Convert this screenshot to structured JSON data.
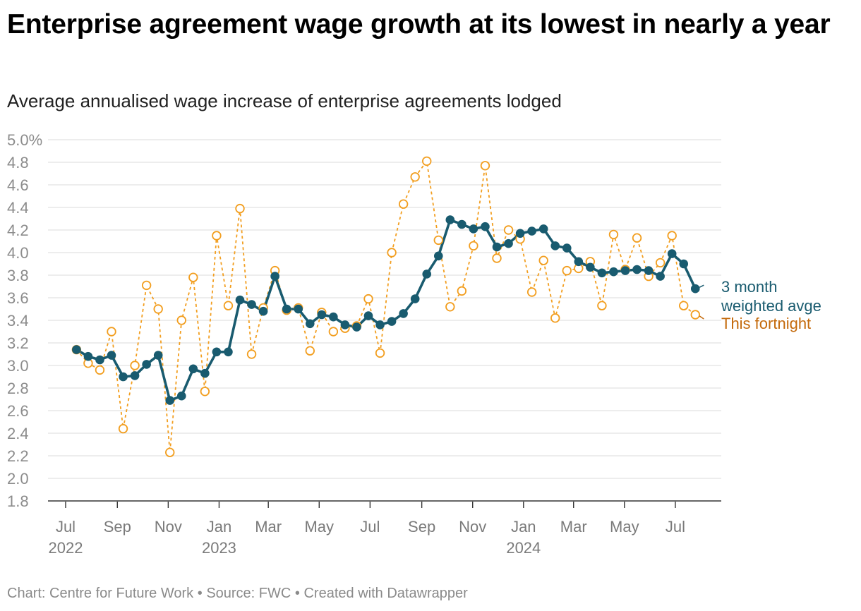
{
  "title": "Enterprise agreement wage growth at its lowest in nearly a year",
  "subtitle": "Average annualised wage increase of enterprise agreements lodged",
  "footer": {
    "chart_by": "Chart: Centre for Future Work",
    "source": "Source: FWC",
    "created": "Created with Datawrapper",
    "separator": "•"
  },
  "colors": {
    "weighted": "#195b6f",
    "fortnight": "#f29e1f",
    "fortnight_label": "#c46a0c",
    "grid": "#e2e2e2",
    "axis": "#333333"
  },
  "chart_data": {
    "type": "line",
    "title": "Enterprise agreement wage growth at its lowest in nearly a year",
    "subtitle": "Average annualised wage increase of enterprise agreements lodged",
    "y_axis": {
      "min": 1.8,
      "max": 5.0,
      "ticks": [
        1.8,
        2.0,
        2.2,
        2.4,
        2.6,
        2.8,
        3.0,
        3.2,
        3.4,
        3.6,
        3.8,
        4.0,
        4.2,
        4.4,
        4.6,
        4.8,
        5.0
      ],
      "tick_labels": [
        "1.8",
        "2.0",
        "2.2",
        "2.4",
        "2.6",
        "2.8",
        "3.0",
        "3.2",
        "3.4",
        "3.6",
        "3.8",
        "4.0",
        "4.2",
        "4.4",
        "4.6",
        "4.8",
        "5.0%"
      ],
      "grid": true
    },
    "x_axis": {
      "range": [
        "2022-07-01",
        "2024-08-20"
      ],
      "ticks": [
        {
          "date": "2022-07-01",
          "label": "Jul",
          "year": "2022"
        },
        {
          "date": "2022-09-01",
          "label": "Sep",
          "year": ""
        },
        {
          "date": "2022-11-01",
          "label": "Nov",
          "year": ""
        },
        {
          "date": "2023-01-01",
          "label": "Jan",
          "year": "2023"
        },
        {
          "date": "2023-03-01",
          "label": "Mar",
          "year": ""
        },
        {
          "date": "2023-05-01",
          "label": "May",
          "year": ""
        },
        {
          "date": "2023-07-01",
          "label": "Jul",
          "year": ""
        },
        {
          "date": "2023-09-01",
          "label": "Sep",
          "year": ""
        },
        {
          "date": "2023-11-01",
          "label": "Nov",
          "year": ""
        },
        {
          "date": "2024-01-01",
          "label": "Jan",
          "year": "2024"
        },
        {
          "date": "2024-03-01",
          "label": "Mar",
          "year": ""
        },
        {
          "date": "2024-05-01",
          "label": "May",
          "year": ""
        },
        {
          "date": "2024-07-01",
          "label": "Jul",
          "year": ""
        }
      ]
    },
    "legend": "direct labels at right end of lines",
    "x": [
      "2022-07-14",
      "2022-07-28",
      "2022-08-11",
      "2022-08-25",
      "2022-09-08",
      "2022-09-22",
      "2022-10-06",
      "2022-10-20",
      "2022-11-03",
      "2022-11-17",
      "2022-12-01",
      "2022-12-15",
      "2022-12-29",
      "2023-01-12",
      "2023-01-26",
      "2023-02-09",
      "2023-02-23",
      "2023-03-09",
      "2023-03-23",
      "2023-04-06",
      "2023-04-20",
      "2023-05-04",
      "2023-05-18",
      "2023-06-01",
      "2023-06-15",
      "2023-06-29",
      "2023-07-13",
      "2023-07-27",
      "2023-08-10",
      "2023-08-24",
      "2023-09-07",
      "2023-09-21",
      "2023-10-05",
      "2023-10-19",
      "2023-11-02",
      "2023-11-16",
      "2023-11-30",
      "2023-12-14",
      "2023-12-28",
      "2024-01-11",
      "2024-01-25",
      "2024-02-08",
      "2024-02-22",
      "2024-03-07",
      "2024-03-21",
      "2024-04-04",
      "2024-04-18",
      "2024-05-02",
      "2024-05-16",
      "2024-05-30",
      "2024-06-13",
      "2024-06-27",
      "2024-07-11",
      "2024-07-25"
    ],
    "series": [
      {
        "name": "3 month weighted avge",
        "label_lines": [
          "3 month",
          "weighted avge"
        ],
        "style": "solid line, filled markers",
        "values": [
          3.14,
          3.08,
          3.05,
          3.09,
          2.9,
          2.91,
          3.01,
          3.09,
          2.69,
          2.73,
          2.97,
          2.93,
          3.12,
          3.12,
          3.58,
          3.54,
          3.48,
          3.79,
          3.5,
          3.5,
          3.37,
          3.45,
          3.43,
          3.36,
          3.34,
          3.44,
          3.36,
          3.39,
          3.46,
          3.59,
          3.81,
          3.97,
          4.29,
          4.25,
          4.21,
          4.23,
          4.05,
          4.08,
          4.17,
          4.19,
          4.21,
          4.06,
          4.04,
          3.92,
          3.87,
          3.82,
          3.83,
          3.84,
          3.85,
          3.84,
          3.79,
          3.99,
          3.9,
          3.68
        ]
      },
      {
        "name": "This fortnight",
        "label_lines": [
          "This fortnight"
        ],
        "style": "dashed line, hollow markers",
        "values": [
          3.14,
          3.02,
          2.96,
          3.3,
          2.44,
          3.0,
          3.71,
          3.5,
          2.23,
          3.4,
          3.78,
          2.77,
          4.15,
          3.53,
          4.39,
          3.1,
          3.51,
          3.84,
          3.49,
          3.51,
          3.13,
          3.47,
          3.3,
          3.33,
          3.35,
          3.59,
          3.11,
          4.0,
          4.43,
          4.67,
          4.81,
          4.11,
          3.52,
          3.66,
          4.06,
          4.77,
          3.95,
          4.2,
          4.12,
          3.65,
          3.93,
          3.42,
          3.84,
          3.86,
          3.92,
          3.53,
          4.16,
          3.85,
          4.13,
          3.79,
          3.91,
          4.15,
          3.53,
          3.45
        ]
      }
    ]
  }
}
